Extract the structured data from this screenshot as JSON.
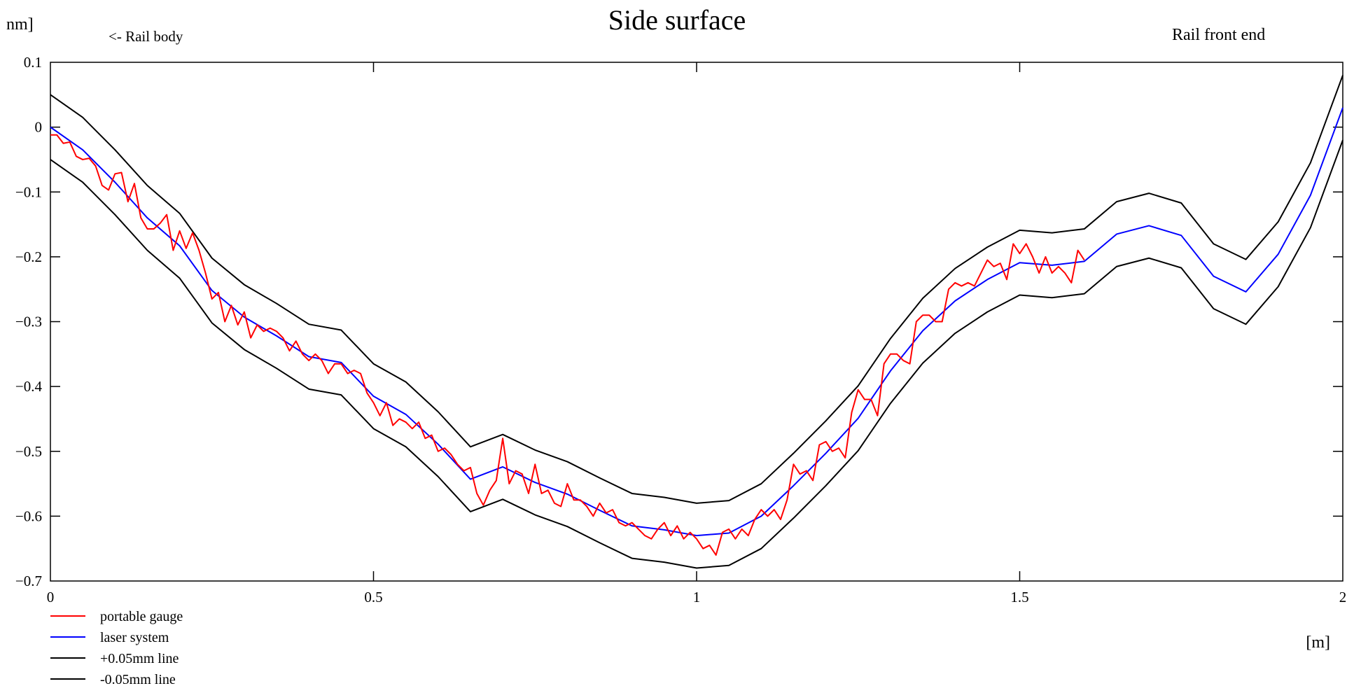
{
  "chart_data": {
    "type": "line",
    "title": "Side surface",
    "ylabel_fragment": "nm]",
    "xlabel": "[m]",
    "annotations": {
      "left": "<- Rail body",
      "right": "Rail front end"
    },
    "xlim": [
      0,
      2
    ],
    "ylim": [
      -0.7,
      0.1
    ],
    "xticks": [
      0,
      0.5,
      1,
      1.5,
      2
    ],
    "yticks": [
      0.1,
      0,
      -0.1,
      -0.2,
      -0.3,
      -0.4,
      -0.5,
      -0.6,
      -0.7
    ],
    "tick_labels_x": [
      "0",
      "0.5",
      "1",
      "1.5",
      "2"
    ],
    "tick_labels_y": [
      "0.1",
      "0",
      "−0.1",
      "−0.2",
      "−0.3",
      "−0.4",
      "−0.5",
      "−0.6",
      "−0.7"
    ],
    "grid": false,
    "legend_position": "bottom-left",
    "series": [
      {
        "name": "portable gauge",
        "color": "#ff0000",
        "x": [
          0,
          0.01,
          0.02,
          0.03,
          0.04,
          0.05,
          0.06,
          0.07,
          0.08,
          0.09,
          0.1,
          0.11,
          0.12,
          0.13,
          0.14,
          0.15,
          0.16,
          0.17,
          0.18,
          0.19,
          0.2,
          0.21,
          0.22,
          0.23,
          0.24,
          0.25,
          0.26,
          0.27,
          0.28,
          0.29,
          0.3,
          0.31,
          0.32,
          0.33,
          0.34,
          0.35,
          0.36,
          0.37,
          0.38,
          0.39,
          0.4,
          0.41,
          0.42,
          0.43,
          0.44,
          0.45,
          0.46,
          0.47,
          0.48,
          0.49,
          0.5,
          0.51,
          0.52,
          0.53,
          0.54,
          0.55,
          0.56,
          0.57,
          0.58,
          0.59,
          0.6,
          0.61,
          0.62,
          0.63,
          0.64,
          0.65,
          0.66,
          0.67,
          0.68,
          0.69,
          0.7,
          0.71,
          0.72,
          0.73,
          0.74,
          0.75,
          0.76,
          0.77,
          0.78,
          0.79,
          0.8,
          0.81,
          0.82,
          0.83,
          0.84,
          0.85,
          0.86,
          0.87,
          0.88,
          0.89,
          0.9,
          0.91,
          0.92,
          0.93,
          0.94,
          0.95,
          0.96,
          0.97,
          0.98,
          0.99,
          1.0,
          1.01,
          1.02,
          1.03,
          1.04,
          1.05,
          1.06,
          1.07,
          1.08,
          1.09,
          1.1,
          1.11,
          1.12,
          1.13,
          1.14,
          1.15,
          1.16,
          1.17,
          1.18,
          1.19,
          1.2,
          1.21,
          1.22,
          1.23,
          1.24,
          1.25,
          1.26,
          1.27,
          1.28,
          1.29,
          1.3,
          1.31,
          1.32,
          1.33,
          1.34,
          1.35,
          1.36,
          1.37,
          1.38,
          1.39,
          1.4,
          1.41,
          1.42,
          1.43,
          1.44,
          1.45,
          1.46,
          1.47,
          1.48,
          1.49,
          1.5,
          1.51,
          1.52,
          1.53,
          1.54,
          1.55,
          1.56,
          1.57,
          1.58,
          1.59,
          1.6
        ],
        "y": [
          -0.012,
          -0.012,
          -0.025,
          -0.023,
          -0.045,
          -0.05,
          -0.048,
          -0.06,
          -0.09,
          -0.097,
          -0.072,
          -0.07,
          -0.115,
          -0.087,
          -0.14,
          -0.157,
          -0.157,
          -0.148,
          -0.135,
          -0.19,
          -0.16,
          -0.187,
          -0.163,
          -0.19,
          -0.225,
          -0.265,
          -0.255,
          -0.3,
          -0.275,
          -0.305,
          -0.285,
          -0.325,
          -0.305,
          -0.315,
          -0.31,
          -0.315,
          -0.325,
          -0.345,
          -0.33,
          -0.35,
          -0.36,
          -0.35,
          -0.36,
          -0.38,
          -0.365,
          -0.365,
          -0.38,
          -0.375,
          -0.38,
          -0.41,
          -0.425,
          -0.445,
          -0.425,
          -0.46,
          -0.45,
          -0.455,
          -0.465,
          -0.455,
          -0.48,
          -0.475,
          -0.5,
          -0.495,
          -0.505,
          -0.52,
          -0.53,
          -0.525,
          -0.565,
          -0.583,
          -0.56,
          -0.545,
          -0.48,
          -0.55,
          -0.53,
          -0.535,
          -0.565,
          -0.52,
          -0.565,
          -0.56,
          -0.58,
          -0.585,
          -0.55,
          -0.575,
          -0.575,
          -0.585,
          -0.6,
          -0.58,
          -0.595,
          -0.59,
          -0.61,
          -0.615,
          -0.61,
          -0.62,
          -0.63,
          -0.635,
          -0.62,
          -0.61,
          -0.63,
          -0.615,
          -0.635,
          -0.625,
          -0.635,
          -0.65,
          -0.645,
          -0.66,
          -0.625,
          -0.62,
          -0.635,
          -0.62,
          -0.63,
          -0.605,
          -0.59,
          -0.6,
          -0.59,
          -0.605,
          -0.575,
          -0.52,
          -0.535,
          -0.53,
          -0.545,
          -0.49,
          -0.485,
          -0.5,
          -0.495,
          -0.51,
          -0.44,
          -0.405,
          -0.42,
          -0.42,
          -0.445,
          -0.365,
          -0.35,
          -0.35,
          -0.36,
          -0.365,
          -0.3,
          -0.29,
          -0.29,
          -0.3,
          -0.3,
          -0.25,
          -0.24,
          -0.245,
          -0.24,
          -0.245,
          -0.225,
          -0.205,
          -0.215,
          -0.21,
          -0.235,
          -0.18,
          -0.195,
          -0.18,
          -0.2,
          -0.225,
          -0.2,
          -0.225,
          -0.215,
          -0.225,
          -0.24,
          -0.19,
          -0.205
        ]
      },
      {
        "name": "laser system",
        "color": "#0000ff",
        "x": [
          0,
          0.05,
          0.1,
          0.15,
          0.2,
          0.25,
          0.3,
          0.35,
          0.4,
          0.45,
          0.5,
          0.55,
          0.6,
          0.65,
          0.7,
          0.75,
          0.8,
          0.85,
          0.9,
          0.95,
          1.0,
          1.05,
          1.1,
          1.15,
          1.2,
          1.25,
          1.3,
          1.35,
          1.4,
          1.45,
          1.5,
          1.55,
          1.6,
          1.65,
          1.7,
          1.75,
          1.8,
          1.85,
          1.9,
          1.95,
          2.0
        ],
        "y": [
          0,
          -0.035,
          -0.085,
          -0.14,
          -0.183,
          -0.252,
          -0.293,
          -0.322,
          -0.354,
          -0.363,
          -0.415,
          -0.443,
          -0.489,
          -0.543,
          -0.524,
          -0.548,
          -0.566,
          -0.591,
          -0.615,
          -0.621,
          -0.63,
          -0.626,
          -0.6,
          -0.553,
          -0.503,
          -0.449,
          -0.376,
          -0.314,
          -0.268,
          -0.235,
          -0.209,
          -0.213,
          -0.207,
          -0.165,
          -0.152,
          -0.167,
          -0.23,
          -0.254,
          -0.196,
          -0.105,
          0.03
        ]
      },
      {
        "name": "+0.05mm line",
        "color": "#000000",
        "x": [
          0,
          0.05,
          0.1,
          0.15,
          0.2,
          0.25,
          0.3,
          0.35,
          0.4,
          0.45,
          0.5,
          0.55,
          0.6,
          0.65,
          0.7,
          0.75,
          0.8,
          0.85,
          0.9,
          0.95,
          1.0,
          1.05,
          1.1,
          1.15,
          1.2,
          1.25,
          1.3,
          1.35,
          1.4,
          1.45,
          1.5,
          1.55,
          1.6,
          1.65,
          1.7,
          1.75,
          1.8,
          1.85,
          1.9,
          1.95,
          2.0
        ],
        "y": [
          0.05,
          0.015,
          -0.035,
          -0.09,
          -0.133,
          -0.202,
          -0.243,
          -0.272,
          -0.304,
          -0.313,
          -0.365,
          -0.393,
          -0.439,
          -0.493,
          -0.474,
          -0.498,
          -0.516,
          -0.541,
          -0.565,
          -0.571,
          -0.58,
          -0.576,
          -0.55,
          -0.503,
          -0.453,
          -0.399,
          -0.326,
          -0.264,
          -0.218,
          -0.185,
          -0.159,
          -0.163,
          -0.157,
          -0.115,
          -0.102,
          -0.117,
          -0.18,
          -0.204,
          -0.146,
          -0.055,
          0.08
        ]
      },
      {
        "name": "-0.05mm line",
        "color": "#000000",
        "x": [
          0,
          0.05,
          0.1,
          0.15,
          0.2,
          0.25,
          0.3,
          0.35,
          0.4,
          0.45,
          0.5,
          0.55,
          0.6,
          0.65,
          0.7,
          0.75,
          0.8,
          0.85,
          0.9,
          0.95,
          1.0,
          1.05,
          1.1,
          1.15,
          1.2,
          1.25,
          1.3,
          1.35,
          1.4,
          1.45,
          1.5,
          1.55,
          1.6,
          1.65,
          1.7,
          1.75,
          1.8,
          1.85,
          1.9,
          1.95,
          2.0
        ],
        "y": [
          -0.05,
          -0.085,
          -0.135,
          -0.19,
          -0.233,
          -0.302,
          -0.343,
          -0.372,
          -0.404,
          -0.413,
          -0.465,
          -0.493,
          -0.539,
          -0.593,
          -0.574,
          -0.598,
          -0.616,
          -0.641,
          -0.665,
          -0.671,
          -0.68,
          -0.676,
          -0.65,
          -0.603,
          -0.553,
          -0.499,
          -0.426,
          -0.364,
          -0.318,
          -0.285,
          -0.259,
          -0.263,
          -0.257,
          -0.215,
          -0.202,
          -0.217,
          -0.28,
          -0.304,
          -0.246,
          -0.155,
          -0.02
        ]
      }
    ]
  }
}
